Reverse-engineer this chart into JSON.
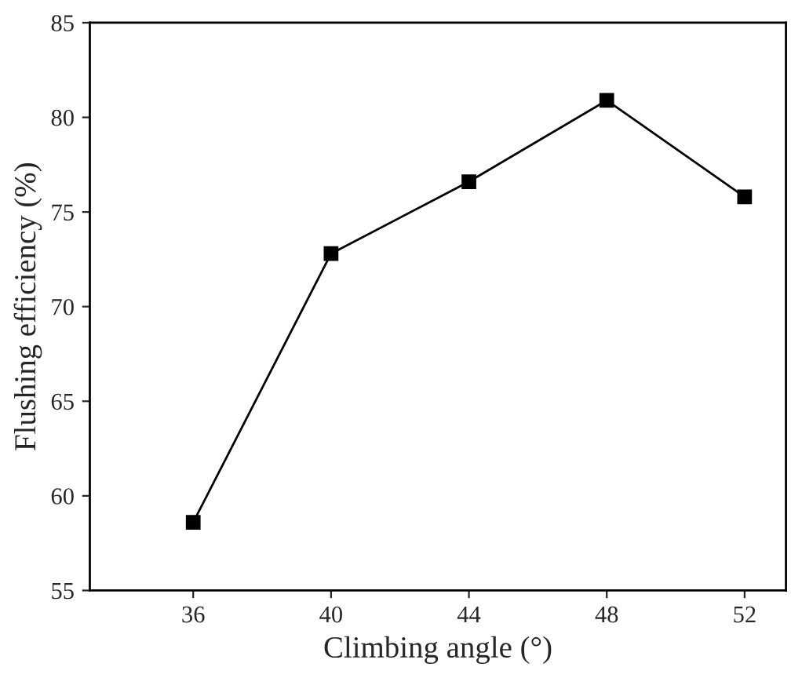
{
  "chart_data": {
    "type": "line",
    "xlabel": "Climbing angle (°)",
    "ylabel": "Flushing efficiency (%)",
    "x": [
      36,
      40,
      44,
      48,
      52
    ],
    "series": [
      {
        "color": "#000000",
        "values": [
          58.6,
          72.8,
          76.6,
          80.9,
          75.8
        ]
      }
    ],
    "xlim": [
      33,
      53.2
    ],
    "xticks": [
      36,
      40,
      44,
      48,
      52
    ],
    "ylim": [
      55,
      85
    ],
    "yticks": [
      55,
      60,
      65,
      70,
      75,
      80,
      85
    ],
    "marker": "square",
    "line_style": "solid",
    "grid": false,
    "legend": false
  }
}
